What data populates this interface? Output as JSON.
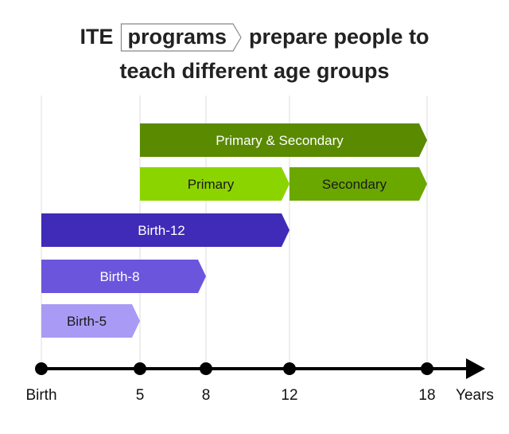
{
  "title": {
    "line1_prefix": "ITE",
    "line1_boxed": "programs",
    "line1_suffix": "prepare people to",
    "line2": "teach different age groups"
  },
  "timeline": {
    "ticks": [
      {
        "label": "Birth",
        "age": 0
      },
      {
        "label": "5",
        "age": 5
      },
      {
        "label": "8",
        "age": 8
      },
      {
        "label": "12",
        "age": 12
      },
      {
        "label": "18",
        "age": 18
      }
    ],
    "unit_label": "Years"
  },
  "bars": [
    {
      "label": "Primary & Secondary",
      "start": 5,
      "end": 18,
      "color": "#5a8a00",
      "text_color": "#ffffff"
    },
    {
      "label": "Primary",
      "start": 5,
      "end": 12,
      "color": "#8cd400",
      "text_color": "#1a1a1a"
    },
    {
      "label": "Secondary",
      "start": 12,
      "end": 18,
      "color": "#6aa800",
      "text_color": "#1a1a1a"
    },
    {
      "label": "Birth-12",
      "start": 0,
      "end": 12,
      "color": "#3f2bb8",
      "text_color": "#ffffff"
    },
    {
      "label": "Birth-8",
      "start": 0,
      "end": 8,
      "color": "#6b55dd",
      "text_color": "#ffffff"
    },
    {
      "label": "Birth-5",
      "start": 0,
      "end": 5,
      "color": "#a99bf5",
      "text_color": "#1a1a1a"
    }
  ],
  "colors": {
    "axis": "#000000",
    "grid": "#dddddd",
    "box_border": "#888888"
  }
}
